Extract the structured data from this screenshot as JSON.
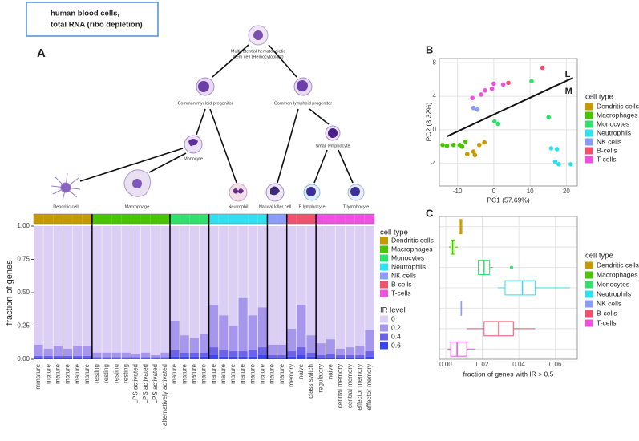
{
  "header": {
    "title_lines": [
      "human blood cells,",
      "total RNA (ribo depletion)"
    ]
  },
  "panel_labels": [
    "A",
    "B",
    "C"
  ],
  "tree": {
    "nodes": [
      {
        "label_lines": [
          "Multipotential hematopoietic",
          "stem cell (Hemocytoblast)"
        ]
      },
      {
        "label_lines": [
          "Common myeloid progenitor"
        ]
      },
      {
        "label_lines": [
          "Common lymphoid progenitor"
        ]
      },
      {
        "label_lines": [
          "Monocyte"
        ]
      },
      {
        "label_lines": [
          "Small lymphocyte"
        ]
      },
      {
        "label_lines": [
          "Dendritic cell"
        ]
      },
      {
        "label_lines": [
          "Macrophage"
        ]
      },
      {
        "label_lines": [
          "Neutrophil"
        ]
      },
      {
        "label_lines": [
          "Natural killer cell"
        ]
      },
      {
        "label_lines": [
          "B lymphocyte"
        ]
      },
      {
        "label_lines": [
          "T lymphocyte"
        ]
      }
    ]
  },
  "chart_data": [
    {
      "type": "stacked_bar",
      "y_label": "fraction of genes",
      "ylim": [
        0,
        1
      ],
      "yticks": [
        {
          "value": 0,
          "label": "0.00"
        },
        {
          "value": 0.25,
          "label": "0.25"
        },
        {
          "value": 0.5,
          "label": "0.50"
        },
        {
          "value": 0.75,
          "label": "0.75"
        },
        {
          "value": 1,
          "label": "1.00"
        }
      ],
      "categories": [
        "immature",
        "mature",
        "mature",
        "mature",
        "mature",
        "mature",
        "resting",
        "resting",
        "resting",
        "resting",
        "LPS activated",
        "LPS activated",
        "LPS activated",
        "alternatively activated",
        "mature",
        "mature",
        "mature",
        "mature",
        "mature",
        "mature",
        "mature",
        "mature",
        "mature",
        "mature",
        "mature",
        "mature",
        "memory",
        "naive",
        "class switch",
        "regulatory",
        "naive",
        "central memory",
        "central memory",
        "effector memory",
        "effector memory"
      ],
      "cell_types": [
        "Dendritic cells",
        "Dendritic cells",
        "Dendritic cells",
        "Dendritic cells",
        "Dendritic cells",
        "Dendritic cells",
        "Macrophages",
        "Macrophages",
        "Macrophages",
        "Macrophages",
        "Macrophages",
        "Macrophages",
        "Macrophages",
        "Macrophages",
        "Monocytes",
        "Monocytes",
        "Monocytes",
        "Monocytes",
        "Neutrophils",
        "Neutrophils",
        "Neutrophils",
        "Neutrophils",
        "Neutrophils",
        "Neutrophils",
        "NK cells",
        "NK cells",
        "B-cells",
        "B-cells",
        "B-cells",
        "T-cells",
        "T-cells",
        "T-cells",
        "T-cells",
        "T-cells",
        "T-cells"
      ],
      "cell_type_legend": {
        "title": "cell type",
        "names": [
          "Dendritic cells",
          "Macrophages",
          "Monocytes",
          "Neutrophils",
          "NK cells",
          "B-cells",
          "T-cells"
        ],
        "colors": [
          "#c49a00",
          "#49c400",
          "#2fe06a",
          "#2fe0f0",
          "#8a9cf5",
          "#f0506e",
          "#f050e0"
        ]
      },
      "legend_title": "IR level",
      "series": [
        {
          "name": "0",
          "color": "#dccff5",
          "values": [
            0.89,
            0.92,
            0.9,
            0.92,
            0.9,
            0.9,
            0.95,
            0.95,
            0.95,
            0.95,
            0.96,
            0.95,
            0.97,
            0.95,
            0.71,
            0.82,
            0.84,
            0.81,
            0.59,
            0.67,
            0.75,
            0.54,
            0.67,
            0.61,
            0.89,
            0.89,
            0.77,
            0.59,
            0.82,
            0.88,
            0.85,
            0.92,
            0.91,
            0.9,
            0.78
          ]
        },
        {
          "name": "0.2",
          "color": "#a696ec",
          "values": [
            0.085,
            0.055,
            0.075,
            0.055,
            0.075,
            0.075,
            0.035,
            0.035,
            0.035,
            0.035,
            0.025,
            0.035,
            0.015,
            0.035,
            0.22,
            0.13,
            0.11,
            0.14,
            0.32,
            0.26,
            0.19,
            0.4,
            0.26,
            0.3,
            0.08,
            0.08,
            0.17,
            0.32,
            0.13,
            0.09,
            0.11,
            0.05,
            0.06,
            0.07,
            0.16
          ]
        },
        {
          "name": "0.4",
          "color": "#6c62ea",
          "values": [
            0.015,
            0.015,
            0.015,
            0.015,
            0.015,
            0.015,
            0.01,
            0.01,
            0.01,
            0.01,
            0.01,
            0.01,
            0.01,
            0.01,
            0.05,
            0.03,
            0.03,
            0.03,
            0.06,
            0.05,
            0.04,
            0.04,
            0.05,
            0.06,
            0.02,
            0.02,
            0.04,
            0.06,
            0.03,
            0.02,
            0.03,
            0.02,
            0.02,
            0.02,
            0.04
          ]
        },
        {
          "name": "0.6",
          "color": "#3a46f0",
          "values": [
            0.01,
            0.01,
            0.01,
            0.01,
            0.01,
            0.01,
            0.005,
            0.005,
            0.005,
            0.005,
            0.005,
            0.005,
            0.005,
            0.005,
            0.02,
            0.02,
            0.02,
            0.02,
            0.03,
            0.02,
            0.02,
            0.02,
            0.02,
            0.03,
            0.01,
            0.01,
            0.02,
            0.03,
            0.02,
            0.01,
            0.01,
            0.01,
            0.01,
            0.01,
            0.02
          ]
        }
      ]
    },
    {
      "type": "scatter",
      "x_label": "PC1 (57.69%)",
      "y_label": "PC2 (8.32%)",
      "xlim": [
        -15,
        23
      ],
      "ylim": [
        -6.7,
        8.5
      ],
      "xticks": [
        -10,
        0,
        10,
        20
      ],
      "yticks": [
        -4,
        0,
        4,
        8
      ],
      "grid": true,
      "legend_title": "cell type",
      "separator": {
        "x": [
          -13,
          21.8
        ],
        "y": [
          -0.8,
          6.2
        ],
        "labels": [
          "L",
          "M"
        ]
      },
      "series": [
        {
          "name": "Dendritic cells",
          "color": "#c49a00",
          "x": [
            -2.6,
            -4.0,
            -7.3,
            -5.6,
            -5.2
          ],
          "y": [
            -1.5,
            -1.8,
            -2.9,
            -2.6,
            -3.0
          ]
        },
        {
          "name": "Macrophages",
          "color": "#49c400",
          "x": [
            -14.1,
            -12.9,
            -11.1,
            -9.4,
            -7.8,
            -8.7
          ],
          "y": [
            -1.8,
            -1.9,
            -1.8,
            -1.8,
            -1.4,
            -2.0
          ]
        },
        {
          "name": "Monocytes",
          "color": "#2fe06a",
          "x": [
            0.2,
            1.2,
            15.1,
            10.4
          ],
          "y": [
            1.0,
            0.7,
            1.5,
            5.8
          ]
        },
        {
          "name": "Neutrophils",
          "color": "#2fe0f0",
          "x": [
            15.8,
            17.4,
            16.9,
            17.9,
            21.2
          ],
          "y": [
            -2.2,
            -2.3,
            -3.8,
            -4.1,
            -4.1
          ]
        },
        {
          "name": "NK cells",
          "color": "#8a9cf5",
          "x": [
            -5.6,
            -4.5
          ],
          "y": [
            2.6,
            2.4
          ]
        },
        {
          "name": "B-cells",
          "color": "#f0506e",
          "x": [
            4.0,
            13.4
          ],
          "y": [
            5.6,
            7.4
          ]
        },
        {
          "name": "T-cells",
          "color": "#f050e0",
          "x": [
            -5.9,
            -3.5,
            -2.4,
            -0.5,
            0,
            2.6
          ],
          "y": [
            3.8,
            4.2,
            4.7,
            4.9,
            5.5,
            5.4
          ]
        }
      ]
    },
    {
      "type": "boxplot",
      "x_label": "fraction of genes with IR > 0.5",
      "xlim": [
        -0.0035,
        0.072
      ],
      "xticks": [
        {
          "value": 0,
          "label": "0.00"
        },
        {
          "value": 0.02,
          "label": "0.02"
        },
        {
          "value": 0.04,
          "label": "0.04"
        },
        {
          "value": 0.06,
          "label": "0.06"
        }
      ],
      "grid": true,
      "legend_title": "cell type",
      "categories": [
        "Dendritic cells",
        "Macrophages",
        "Monocytes",
        "Neutrophils",
        "NK cells",
        "B-cells",
        "T-cells"
      ],
      "colors": [
        "#c49a00",
        "#49c400",
        "#2fe06a",
        "#2fe0f0",
        "#8a9cf5",
        "#f0506e",
        "#f050e0"
      ],
      "boxes": [
        [
          0.007,
          0.0075,
          0.0082,
          0.0088,
          0.009
        ],
        [
          0.0018,
          0.0028,
          0.0038,
          0.005,
          0.0066
        ],
        [
          0.0175,
          0.0178,
          0.021,
          0.024,
          0.026
        ],
        [
          0.0285,
          0.0325,
          0.042,
          0.049,
          0.068
        ],
        [
          0.0083,
          0.0084,
          0.0085,
          0.0086,
          0.0087
        ],
        [
          0.0115,
          0.021,
          0.029,
          0.037,
          0.049
        ],
        [
          0.001,
          0.0027,
          0.0062,
          0.0115,
          0.016
        ]
      ],
      "outliers": [
        [],
        [],
        [
          0.036
        ],
        [],
        [],
        [],
        []
      ]
    }
  ]
}
